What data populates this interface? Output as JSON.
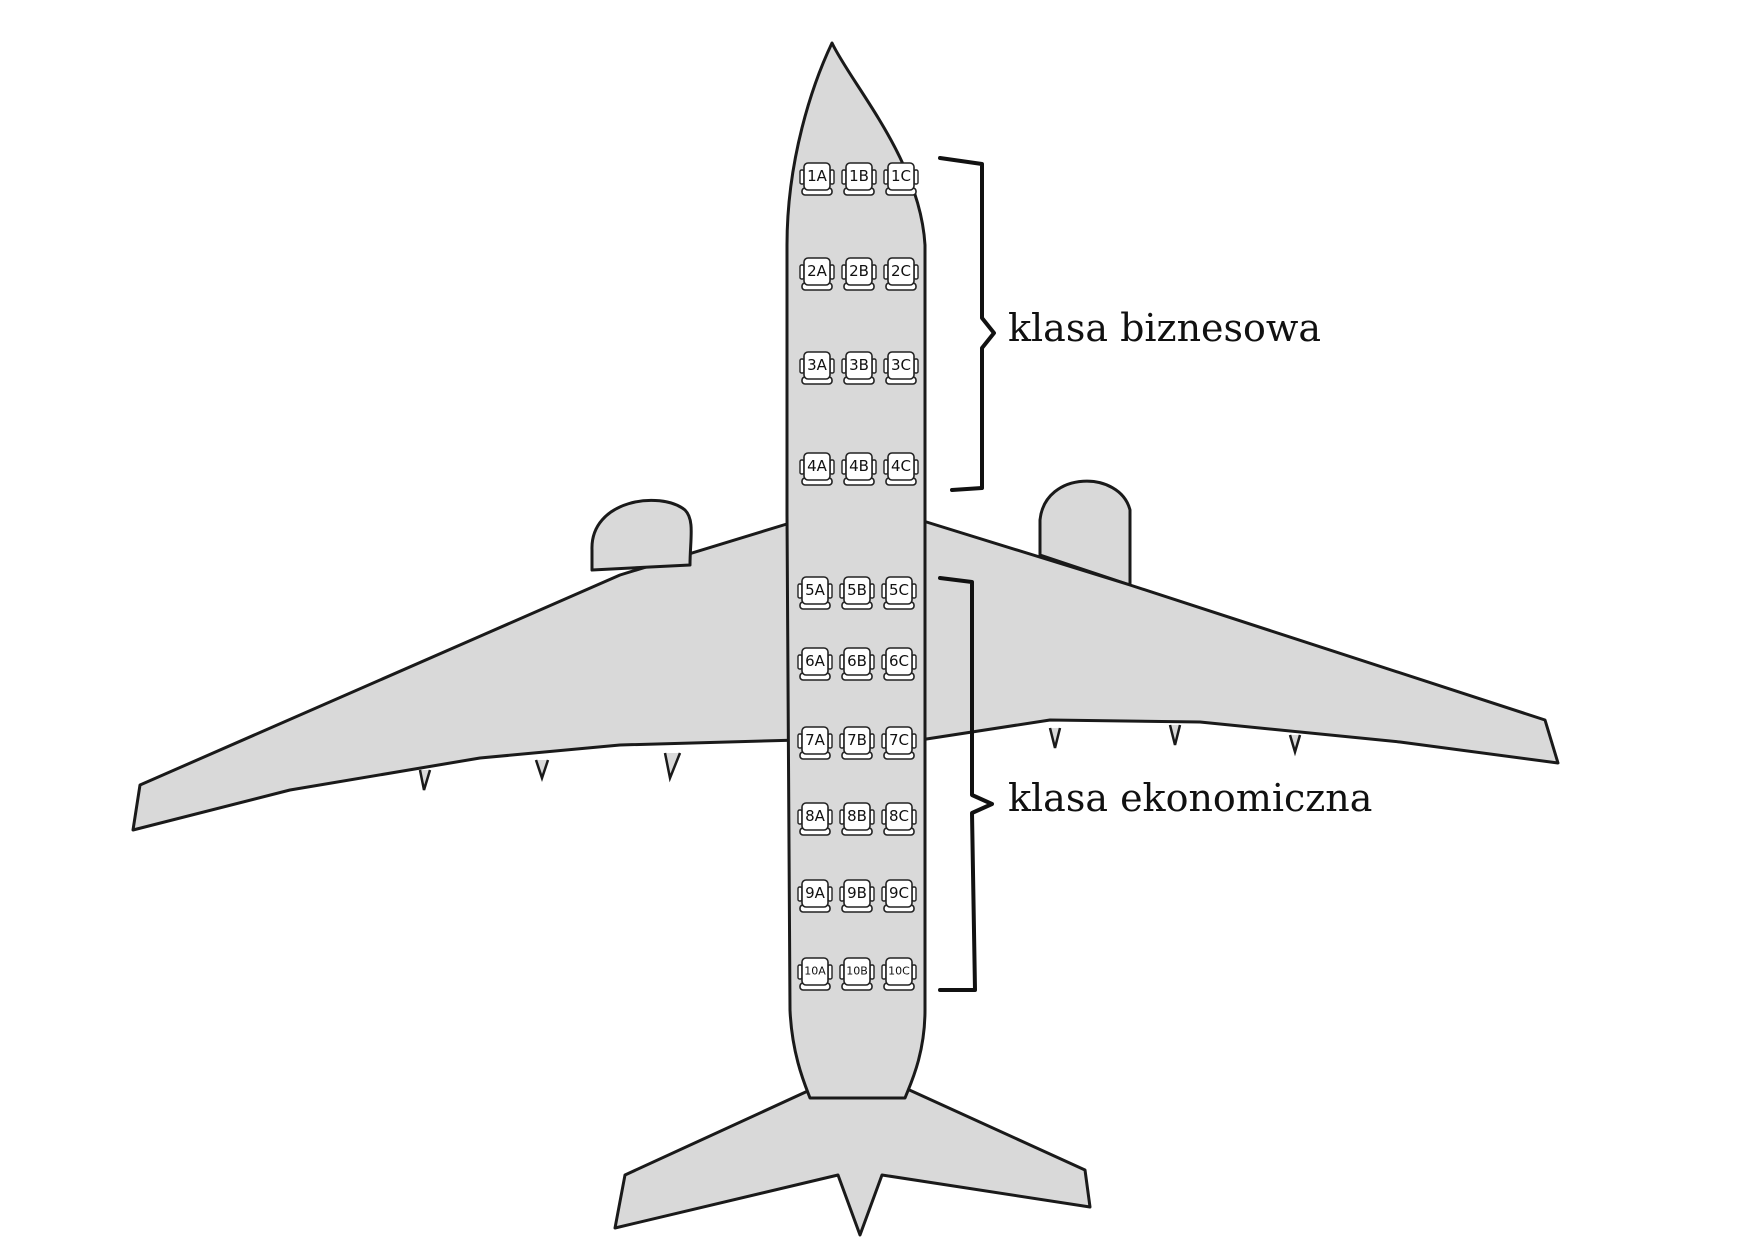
{
  "seat_rows": [
    [
      "1A",
      "1B",
      "1C"
    ],
    [
      "2A",
      "2B",
      "2C"
    ],
    [
      "3A",
      "3B",
      "3C"
    ],
    [
      "4A",
      "4B",
      "4C"
    ],
    [
      "5A",
      "5B",
      "5C"
    ],
    [
      "6A",
      "6B",
      "6C"
    ],
    [
      "7A",
      "7B",
      "7C"
    ],
    [
      "8A",
      "8B",
      "8C"
    ],
    [
      "9A",
      "9B",
      "9C"
    ],
    [
      "10A",
      "10B",
      "10C"
    ]
  ],
  "classes": {
    "business": {
      "label": "klasa biznesowa",
      "rows": [
        "1",
        "2",
        "3",
        "4"
      ]
    },
    "economy": {
      "label": "klasa ekonomiczna",
      "rows": [
        "5",
        "6",
        "7",
        "8",
        "9",
        "10"
      ]
    }
  }
}
